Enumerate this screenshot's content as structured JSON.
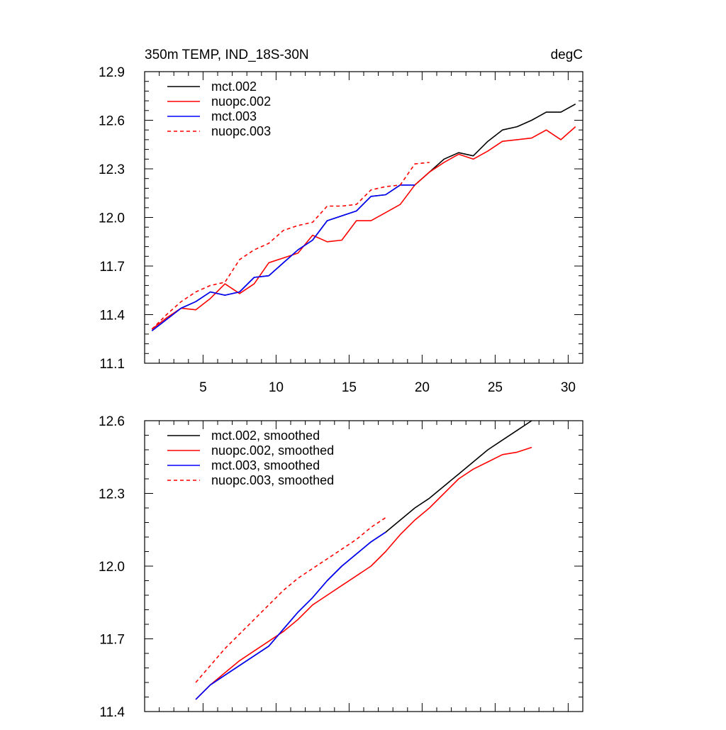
{
  "chart_data": [
    {
      "type": "line",
      "title_left": "350m TEMP, IND_18S-30N",
      "title_right": "degC",
      "xlim": [
        1,
        31
      ],
      "ylim": [
        11.1,
        12.9
      ],
      "xticks": [
        5,
        10,
        15,
        20,
        25,
        30
      ],
      "xtick_labels": [
        "5",
        "10",
        "15",
        "20",
        "25",
        "30"
      ],
      "yticks": [
        11.1,
        11.4,
        11.7,
        12.0,
        12.3,
        12.6,
        12.9
      ],
      "ytick_labels": [
        "11.1",
        "11.4",
        "11.7",
        "12.0",
        "12.3",
        "12.6",
        "12.9"
      ],
      "legend_position": "top-left",
      "series": [
        {
          "name": "mct.002",
          "color": "#000000",
          "dash": "solid",
          "x": [
            1.5,
            2.5,
            3.5,
            4.5,
            5.5,
            6.5,
            7.5,
            8.5,
            9.5,
            10.5,
            11.5,
            12.5,
            13.5,
            14.5,
            15.5,
            16.5,
            17.5,
            18.5,
            19.5,
            20.5,
            21.5,
            22.5,
            23.5,
            24.5,
            25.5,
            26.5,
            27.5,
            28.5,
            29.5,
            30.5
          ],
          "y": [
            11.3,
            11.37,
            11.44,
            11.48,
            11.54,
            11.52,
            11.54,
            11.63,
            11.64,
            11.72,
            11.8,
            11.86,
            11.98,
            12.01,
            12.04,
            12.13,
            12.14,
            12.2,
            12.2,
            12.28,
            12.36,
            12.4,
            12.38,
            12.47,
            12.54,
            12.56,
            12.6,
            12.65,
            12.65,
            12.7
          ]
        },
        {
          "name": "nuopc.002",
          "color": "#ff0000",
          "dash": "solid",
          "x": [
            1.5,
            2.5,
            3.5,
            4.5,
            5.5,
            6.5,
            7.5,
            8.5,
            9.5,
            10.5,
            11.5,
            12.5,
            13.5,
            14.5,
            15.5,
            16.5,
            17.5,
            18.5,
            19.5,
            20.5,
            21.5,
            22.5,
            23.5,
            24.5,
            25.5,
            26.5,
            27.5,
            28.5,
            29.5,
            30.5
          ],
          "y": [
            11.31,
            11.38,
            11.44,
            11.43,
            11.5,
            11.59,
            11.53,
            11.59,
            11.72,
            11.75,
            11.78,
            11.89,
            11.85,
            11.86,
            11.98,
            11.98,
            12.03,
            12.08,
            12.2,
            12.28,
            12.34,
            12.39,
            12.36,
            12.41,
            12.47,
            12.48,
            12.49,
            12.54,
            12.48,
            12.56
          ]
        },
        {
          "name": "mct.003",
          "color": "#0000ff",
          "dash": "solid",
          "x": [
            1.5,
            2.5,
            3.5,
            4.5,
            5.5,
            6.5,
            7.5,
            8.5,
            9.5,
            10.5,
            11.5,
            12.5,
            13.5,
            14.5,
            15.5,
            16.5,
            17.5,
            18.5,
            19.5
          ],
          "y": [
            11.3,
            11.37,
            11.44,
            11.48,
            11.54,
            11.52,
            11.54,
            11.63,
            11.64,
            11.72,
            11.8,
            11.86,
            11.98,
            12.01,
            12.04,
            12.13,
            12.14,
            12.2,
            12.2
          ]
        },
        {
          "name": "nuopc.003",
          "color": "#ff0000",
          "dash": "dashed",
          "x": [
            1.5,
            2.5,
            3.5,
            4.5,
            5.5,
            6.5,
            7.5,
            8.5,
            9.5,
            10.5,
            11.5,
            12.5,
            13.5,
            14.5,
            15.5,
            16.5,
            17.5,
            18.5,
            19.5,
            20.5
          ],
          "y": [
            11.31,
            11.4,
            11.48,
            11.54,
            11.58,
            11.6,
            11.74,
            11.8,
            11.84,
            11.92,
            11.95,
            11.97,
            12.07,
            12.07,
            12.08,
            12.17,
            12.19,
            12.2,
            12.33,
            12.34
          ]
        }
      ]
    },
    {
      "type": "line",
      "xlim": [
        1,
        31
      ],
      "ylim": [
        11.4,
        12.6
      ],
      "xticks": [
        5,
        10,
        15,
        20,
        25,
        30
      ],
      "yticks": [
        11.4,
        11.7,
        12.0,
        12.3,
        12.6
      ],
      "ytick_labels": [
        "11.4",
        "11.7",
        "12.0",
        "12.3",
        "12.6"
      ],
      "legend_position": "top-left",
      "series": [
        {
          "name": "mct.002, smoothed",
          "color": "#000000",
          "dash": "solid",
          "x": [
            4.5,
            5.5,
            6.5,
            7.5,
            8.5,
            9.5,
            10.5,
            11.5,
            12.5,
            13.5,
            14.5,
            15.5,
            16.5,
            17.5,
            18.5,
            19.5,
            20.5,
            21.5,
            22.5,
            23.5,
            24.5,
            25.5,
            26.5,
            27.5
          ],
          "y": [
            11.45,
            11.51,
            11.55,
            11.59,
            11.63,
            11.67,
            11.74,
            11.81,
            11.87,
            11.94,
            12.0,
            12.05,
            12.1,
            12.14,
            12.19,
            12.24,
            12.28,
            12.33,
            12.38,
            12.43,
            12.48,
            12.52,
            12.56,
            12.6
          ]
        },
        {
          "name": "nuopc.002, smoothed",
          "color": "#ff0000",
          "dash": "solid",
          "x": [
            4.5,
            5.5,
            6.5,
            7.5,
            8.5,
            9.5,
            10.5,
            11.5,
            12.5,
            13.5,
            14.5,
            15.5,
            16.5,
            17.5,
            18.5,
            19.5,
            20.5,
            21.5,
            22.5,
            23.5,
            24.5,
            25.5,
            26.5,
            27.5
          ],
          "y": [
            11.45,
            11.51,
            11.56,
            11.61,
            11.65,
            11.69,
            11.73,
            11.78,
            11.84,
            11.88,
            11.92,
            11.96,
            12.0,
            12.06,
            12.13,
            12.19,
            12.24,
            12.3,
            12.36,
            12.4,
            12.43,
            12.46,
            12.47,
            12.49
          ]
        },
        {
          "name": "mct.003, smoothed",
          "color": "#0000ff",
          "dash": "solid",
          "x": [
            4.5,
            5.5,
            6.5,
            7.5,
            8.5,
            9.5,
            10.5,
            11.5,
            12.5,
            13.5,
            14.5,
            15.5,
            16.5,
            17.5
          ],
          "y": [
            11.45,
            11.51,
            11.55,
            11.59,
            11.63,
            11.67,
            11.74,
            11.81,
            11.87,
            11.94,
            12.0,
            12.05,
            12.1,
            12.14
          ]
        },
        {
          "name": "nuopc.003, smoothed",
          "color": "#ff0000",
          "dash": "dashed",
          "x": [
            4.5,
            5.5,
            6.5,
            7.5,
            8.5,
            9.5,
            10.5,
            11.5,
            12.5,
            13.5,
            14.5,
            15.5,
            16.5,
            17.5
          ],
          "y": [
            11.52,
            11.59,
            11.66,
            11.72,
            11.78,
            11.84,
            11.9,
            11.95,
            11.99,
            12.03,
            12.07,
            12.11,
            12.16,
            12.2
          ]
        }
      ]
    }
  ]
}
